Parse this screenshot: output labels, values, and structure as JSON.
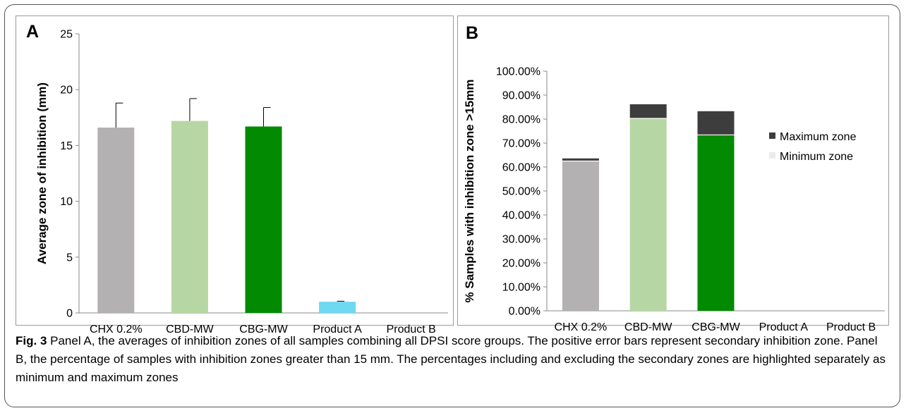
{
  "caption": {
    "label": "Fig. 3",
    "text": " Panel A, the averages of inhibition zones of all samples combining all DPSI score groups. The positive error bars represent secondary inhibition zone. Panel B, the percentage of samples with inhibition zones greater than 15 mm. The percentages including and excluding the secondary zones are highlighted separately as minimum and maximum zones"
  },
  "chart_data": [
    {
      "type": "bar",
      "panel_label": "A",
      "title": "",
      "xlabel": "",
      "ylabel": "Average zone of inhibition (mm)",
      "ylim": [
        0,
        25
      ],
      "yticks": [
        "0",
        "5",
        "10",
        "15",
        "20",
        "25"
      ],
      "ytick_values": [
        0,
        5,
        10,
        15,
        20,
        25
      ],
      "categories": [
        "CHX 0.2%",
        "CBD-MW",
        "CBG-MW",
        "Product A",
        "Product B"
      ],
      "values": [
        16.6,
        17.2,
        16.7,
        1.0,
        0
      ],
      "error_plus": [
        2.2,
        2.0,
        1.7,
        0.05,
        0
      ],
      "colors": [
        "#b3b1b1",
        "#b6d7a3",
        "#028a02",
        "#6fd8f2",
        "#ffffff"
      ],
      "grid": false,
      "legend": "none"
    },
    {
      "type": "bar",
      "stacked": true,
      "panel_label": "B",
      "title": "",
      "xlabel": "",
      "ylabel": "% Samples with inhibition zone >15mm",
      "ylim": [
        0,
        100
      ],
      "yticks": [
        "0.00%",
        "10.00%",
        "20.00%",
        "30.00%",
        "40.00%",
        "50.00%",
        "60.00%",
        "70.00%",
        "80.00%",
        "90.00%",
        "100.00%"
      ],
      "ytick_values": [
        0,
        10,
        20,
        30,
        40,
        50,
        60,
        70,
        80,
        90,
        100
      ],
      "categories": [
        "CHX 0.2%",
        "CBD-MW",
        "CBG-MW",
        "Product A",
        "Product B"
      ],
      "series": [
        {
          "name": "Minimum zone",
          "values": [
            62.5,
            80.3,
            73.4,
            0,
            0
          ],
          "colors": [
            "#b3b1b1",
            "#b6d7a3",
            "#028a02",
            "#ffffff",
            "#ffffff"
          ]
        },
        {
          "name": "Maximum zone",
          "values": [
            1.1,
            5.9,
            9.9,
            0,
            0
          ],
          "color": "#3d3d3d"
        }
      ],
      "legend_order": [
        "Maximum zone",
        "Minimum zone"
      ],
      "legend_colors": [
        "#3d3d3d",
        "#ececec"
      ],
      "grid": false,
      "legend": "right"
    }
  ]
}
